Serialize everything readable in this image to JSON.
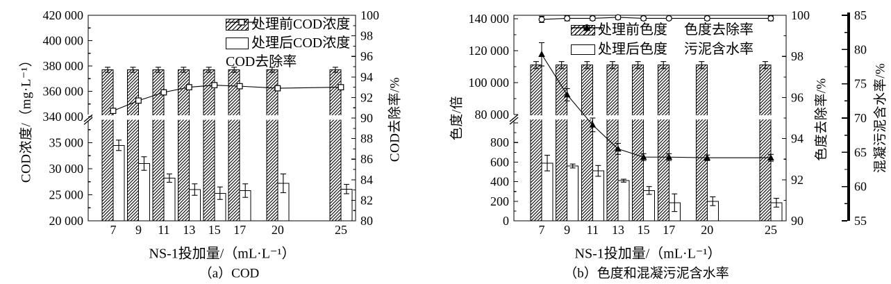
{
  "figure": {
    "description": "Dual-panel scientific figure: effect of NS-1 dosage on COD, chroma and coagulated sludge water content",
    "panel_count": 2
  },
  "chart_data": [
    {
      "id": "a",
      "type": "bar+line",
      "caption": "（a）COD",
      "xlabel": "NS-1投加量/（mL·L⁻¹）",
      "left_label": "COD浓度/（mg·L⁻¹）",
      "right_label": "COD去除率/%",
      "x_categories": [
        7,
        9,
        11,
        13,
        15,
        17,
        20,
        25
      ],
      "left_axis": {
        "broken": true,
        "upper_ticks": [
          340000,
          360000,
          380000,
          400000,
          420000
        ],
        "lower_ticks": [
          20000,
          25000,
          30000,
          35000
        ],
        "upper_range": [
          340000,
          420000
        ],
        "lower_range": [
          20000,
          39000
        ]
      },
      "right_axis": {
        "ticks": [
          80,
          82,
          84,
          86,
          88,
          90,
          92,
          94,
          96,
          98,
          100
        ],
        "range": [
          80,
          100
        ]
      },
      "series": [
        {
          "name": "处理前COD浓度",
          "kind": "bar",
          "fill": "hatch",
          "axis": "left",
          "values": [
            377000,
            377000,
            377000,
            377000,
            377000,
            377000,
            377000,
            377000
          ],
          "errors": [
            2000,
            2000,
            2000,
            2000,
            2000,
            2000,
            2000,
            2000
          ]
        },
        {
          "name": "处理后COD浓度",
          "kind": "bar",
          "fill": "open",
          "axis": "left",
          "values": [
            34500,
            31000,
            28200,
            26000,
            25300,
            25800,
            27200,
            26100
          ],
          "errors": [
            1000,
            1300,
            800,
            1100,
            1200,
            1300,
            1800,
            900
          ]
        },
        {
          "name": "COD去除率",
          "kind": "line",
          "marker": "square",
          "axis": "right",
          "values": [
            90.7,
            91.7,
            92.5,
            93.0,
            93.2,
            93.1,
            92.9,
            93.0
          ]
        }
      ]
    },
    {
      "id": "b",
      "type": "bar+line",
      "caption": "（b）色度和混凝污泥含水率",
      "xlabel": "NS-1投加量/（mL·L⁻¹）",
      "left_label": "色度/倍",
      "right_label": "色度去除率/%",
      "right2_label": "混凝污泥含水率/%",
      "x_categories": [
        7,
        9,
        11,
        13,
        15,
        17,
        20,
        25
      ],
      "left_axis": {
        "broken": true,
        "upper_ticks": [
          80000,
          100000,
          120000,
          140000
        ],
        "lower_ticks": [
          0,
          200,
          400,
          600,
          800
        ],
        "upper_range": [
          80000,
          140000
        ],
        "lower_range": [
          0,
          1000
        ]
      },
      "right_axis": {
        "ticks": [
          90,
          92,
          94,
          96,
          98,
          100
        ],
        "range": [
          90,
          100
        ]
      },
      "right2_axis": {
        "ticks": [
          55,
          60,
          65,
          70,
          75,
          80,
          85
        ],
        "range": [
          55,
          85
        ]
      },
      "series": [
        {
          "name": "处理前色度",
          "kind": "bar",
          "fill": "hatch",
          "axis": "left",
          "values": [
            111000,
            111000,
            111000,
            111000,
            111000,
            111000,
            111000,
            111000
          ],
          "errors": [
            2200,
            2200,
            2200,
            2200,
            2200,
            2200,
            2200,
            2200
          ]
        },
        {
          "name": "处理后色度",
          "kind": "bar",
          "fill": "open",
          "axis": "left",
          "values": [
            590,
            560,
            510,
            410,
            310,
            185,
            200,
            185
          ],
          "errors": [
            80,
            20,
            55,
            15,
            40,
            90,
            45,
            45
          ]
        },
        {
          "name": "色度去除率",
          "kind": "line",
          "marker": "circle",
          "axis": "right",
          "values": [
            99.8,
            99.85,
            99.85,
            99.9,
            99.85,
            99.85,
            99.85,
            99.85
          ],
          "errors": [
            0.15,
            0.12,
            0.1,
            0.1,
            0.1,
            0.08,
            0.1,
            0.12
          ]
        },
        {
          "name": "污泥含水率",
          "kind": "line",
          "marker": "triangle",
          "axis": "right2",
          "values": [
            79.3,
            73.4,
            69.0,
            65.5,
            64.3,
            64.3,
            64.2,
            64.2
          ],
          "errors": [
            1.7,
            0.9,
            1.0,
            0.8,
            0.5,
            0.5,
            0.4,
            0.5
          ]
        }
      ]
    }
  ],
  "colors": {
    "ink": "#000000",
    "background": "#ffffff"
  }
}
